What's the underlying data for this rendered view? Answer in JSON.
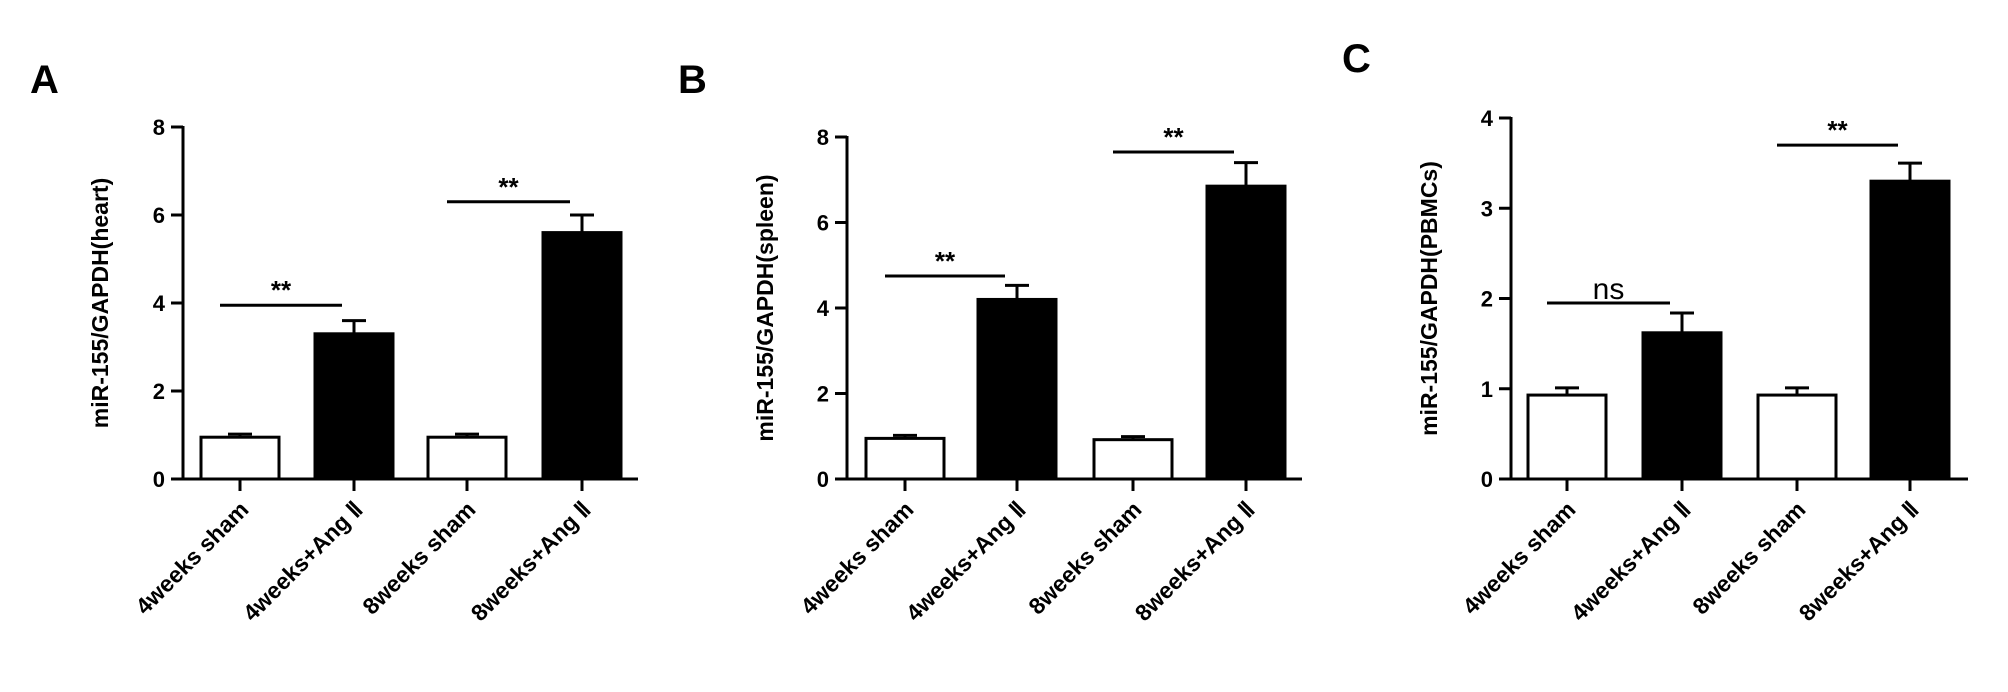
{
  "figure": {
    "background": "#ffffff",
    "ink": "#000000"
  },
  "chart_data": [
    {
      "type": "bar",
      "panel_label": "A",
      "categories": [
        "4weeks sham",
        "4weeks+Ang Ⅱ",
        "8weeks sham",
        "8weeks+Ang Ⅱ"
      ],
      "values": [
        0.95,
        3.3,
        0.95,
        5.6
      ],
      "errors": [
        0.07,
        0.3,
        0.07,
        0.4
      ],
      "bar_fills": [
        "#ffffff",
        "#000000",
        "#ffffff",
        "#000000"
      ],
      "ylabel": "miR-155/GAPDH(heart)",
      "ylim": [
        0,
        8
      ],
      "yticks": [
        0,
        2,
        4,
        6,
        8
      ],
      "significance": [
        {
          "from": 0,
          "to": 1,
          "y": 3.95,
          "label": "**"
        },
        {
          "from": 2,
          "to": 3,
          "y": 6.3,
          "label": "**"
        }
      ]
    },
    {
      "type": "bar",
      "panel_label": "B",
      "categories": [
        "4weeks sham",
        "4weeks+Ang Ⅱ",
        "8weeks sham",
        "8weeks+Ang Ⅱ"
      ],
      "values": [
        0.95,
        4.2,
        0.92,
        6.85
      ],
      "errors": [
        0.07,
        0.33,
        0.07,
        0.55
      ],
      "bar_fills": [
        "#ffffff",
        "#000000",
        "#ffffff",
        "#000000"
      ],
      "ylabel": "miR-155/GAPDH(spleen)",
      "ylim": [
        0,
        8
      ],
      "yticks": [
        0,
        2,
        4,
        6,
        8
      ],
      "significance": [
        {
          "from": 0,
          "to": 1,
          "y": 4.75,
          "label": "**"
        },
        {
          "from": 2,
          "to": 3,
          "y": 7.65,
          "label": "**"
        }
      ]
    },
    {
      "type": "bar",
      "panel_label": "C",
      "categories": [
        "4weeks sham",
        "4weeks+Ang Ⅱ",
        "8weeks sham",
        "8weeks+Ang Ⅱ"
      ],
      "values": [
        0.93,
        1.62,
        0.93,
        3.3
      ],
      "errors": [
        0.08,
        0.22,
        0.08,
        0.2
      ],
      "bar_fills": [
        "#ffffff",
        "#000000",
        "#ffffff",
        "#000000"
      ],
      "ylabel": "miR-155/GAPDH(PBMCs)",
      "ylim": [
        0,
        4
      ],
      "yticks": [
        0,
        1,
        2,
        3,
        4
      ],
      "significance": [
        {
          "from": 0,
          "to": 1,
          "y": 1.95,
          "label": "ns"
        },
        {
          "from": 2,
          "to": 3,
          "y": 3.7,
          "label": "**"
        }
      ]
    }
  ]
}
